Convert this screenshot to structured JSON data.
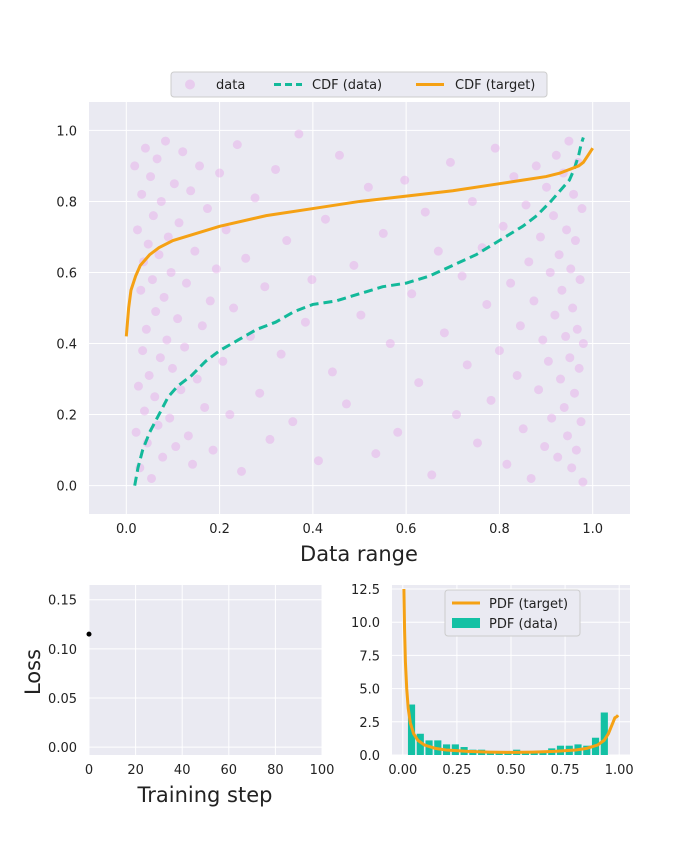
{
  "chart_data": [
    {
      "type": "scatter",
      "xlabel": "Data range",
      "ylabel": "",
      "xlim": [
        -0.08,
        1.08
      ],
      "ylim": [
        -0.08,
        1.08
      ],
      "xticks": [
        "0.0",
        "0.2",
        "0.4",
        "0.6",
        "0.8",
        "1.0"
      ],
      "yticks": [
        "0.0",
        "0.2",
        "0.4",
        "0.6",
        "0.8",
        "1.0"
      ],
      "grid": true,
      "legend": {
        "placement": "top-center",
        "entries": [
          {
            "label": "data",
            "color": "#e6a8e8",
            "style": "marker"
          },
          {
            "label": "CDF (data)",
            "color": "#13b99a",
            "style": "dashed"
          },
          {
            "label": "CDF (target)",
            "color": "#f5a114",
            "style": "solid"
          }
        ]
      },
      "scatter_series": {
        "name": "data",
        "color": "#e6a8e8",
        "x": [
          0.018,
          0.021,
          0.024,
          0.026,
          0.029,
          0.031,
          0.033,
          0.035,
          0.037,
          0.039,
          0.041,
          0.043,
          0.045,
          0.047,
          0.049,
          0.052,
          0.054,
          0.056,
          0.058,
          0.061,
          0.063,
          0.066,
          0.068,
          0.07,
          0.073,
          0.075,
          0.078,
          0.081,
          0.084,
          0.087,
          0.09,
          0.093,
          0.096,
          0.099,
          0.103,
          0.106,
          0.11,
          0.113,
          0.117,
          0.121,
          0.125,
          0.129,
          0.133,
          0.138,
          0.142,
          0.147,
          0.152,
          0.157,
          0.163,
          0.168,
          0.174,
          0.18,
          0.186,
          0.193,
          0.2,
          0.207,
          0.214,
          0.222,
          0.23,
          0.238,
          0.247,
          0.256,
          0.266,
          0.276,
          0.286,
          0.297,
          0.308,
          0.32,
          0.332,
          0.344,
          0.357,
          0.37,
          0.384,
          0.398,
          0.412,
          0.427,
          0.442,
          0.457,
          0.472,
          0.488,
          0.503,
          0.519,
          0.535,
          0.551,
          0.566,
          0.582,
          0.597,
          0.612,
          0.627,
          0.641,
          0.655,
          0.669,
          0.682,
          0.695,
          0.708,
          0.72,
          0.731,
          0.742,
          0.753,
          0.763,
          0.773,
          0.782,
          0.791,
          0.8,
          0.808,
          0.816,
          0.824,
          0.831,
          0.838,
          0.845,
          0.851,
          0.857,
          0.863,
          0.868,
          0.874,
          0.879,
          0.884,
          0.888,
          0.893,
          0.897,
          0.901,
          0.905,
          0.909,
          0.912,
          0.916,
          0.919,
          0.922,
          0.925,
          0.928,
          0.931,
          0.934,
          0.937,
          0.939,
          0.942,
          0.944,
          0.946,
          0.949,
          0.951,
          0.953,
          0.955,
          0.957,
          0.959,
          0.961,
          0.963,
          0.965,
          0.967,
          0.969,
          0.971,
          0.973,
          0.975,
          0.977,
          0.979,
          0.98
        ],
        "y": [
          0.9,
          0.15,
          0.72,
          0.28,
          0.05,
          0.55,
          0.82,
          0.38,
          0.63,
          0.21,
          0.95,
          0.44,
          0.12,
          0.68,
          0.31,
          0.87,
          0.02,
          0.58,
          0.76,
          0.25,
          0.49,
          0.92,
          0.17,
          0.65,
          0.36,
          0.8,
          0.08,
          0.53,
          0.97,
          0.41,
          0.7,
          0.19,
          0.6,
          0.33,
          0.85,
          0.11,
          0.47,
          0.74,
          0.27,
          0.94,
          0.39,
          0.57,
          0.14,
          0.83,
          0.06,
          0.66,
          0.3,
          0.9,
          0.45,
          0.22,
          0.78,
          0.52,
          0.1,
          0.61,
          0.88,
          0.35,
          0.72,
          0.2,
          0.5,
          0.96,
          0.04,
          0.64,
          0.42,
          0.81,
          0.26,
          0.56,
          0.13,
          0.89,
          0.37,
          0.69,
          0.18,
          0.99,
          0.46,
          0.58,
          0.07,
          0.75,
          0.32,
          0.93,
          0.23,
          0.62,
          0.48,
          0.84,
          0.09,
          0.71,
          0.4,
          0.15,
          0.86,
          0.54,
          0.29,
          0.77,
          0.03,
          0.66,
          0.43,
          0.91,
          0.2,
          0.59,
          0.34,
          0.8,
          0.12,
          0.67,
          0.51,
          0.24,
          0.95,
          0.38,
          0.73,
          0.06,
          0.57,
          0.87,
          0.31,
          0.45,
          0.16,
          0.79,
          0.63,
          0.02,
          0.52,
          0.9,
          0.27,
          0.7,
          0.41,
          0.11,
          0.84,
          0.35,
          0.6,
          0.19,
          0.76,
          0.48,
          0.93,
          0.08,
          0.65,
          0.3,
          0.55,
          0.88,
          0.22,
          0.42,
          0.72,
          0.14,
          0.97,
          0.36,
          0.61,
          0.05,
          0.5,
          0.82,
          0.26,
          0.69,
          0.1,
          0.44,
          0.91,
          0.33,
          0.58,
          0.18,
          0.78,
          0.01,
          0.4
        ],
        "points_visible": true
      },
      "cdf_data": {
        "name": "CDF (data)",
        "color": "#13b99a",
        "x": [
          0.018,
          0.025,
          0.035,
          0.05,
          0.07,
          0.09,
          0.11,
          0.14,
          0.17,
          0.2,
          0.24,
          0.28,
          0.32,
          0.36,
          0.4,
          0.45,
          0.5,
          0.55,
          0.6,
          0.65,
          0.7,
          0.75,
          0.8,
          0.85,
          0.88,
          0.91,
          0.93,
          0.95,
          0.96,
          0.97,
          0.975,
          0.98
        ],
        "y": [
          0.0,
          0.05,
          0.1,
          0.15,
          0.2,
          0.25,
          0.28,
          0.31,
          0.35,
          0.38,
          0.41,
          0.44,
          0.46,
          0.49,
          0.51,
          0.52,
          0.54,
          0.56,
          0.57,
          0.59,
          0.62,
          0.65,
          0.69,
          0.73,
          0.76,
          0.8,
          0.83,
          0.86,
          0.89,
          0.93,
          0.96,
          0.98
        ]
      },
      "cdf_target": {
        "name": "CDF (target)",
        "color": "#f5a114",
        "x": [
          0.0,
          0.005,
          0.01,
          0.02,
          0.03,
          0.05,
          0.07,
          0.1,
          0.15,
          0.2,
          0.3,
          0.4,
          0.5,
          0.6,
          0.7,
          0.8,
          0.85,
          0.9,
          0.93,
          0.95,
          0.97,
          0.98,
          0.99,
          1.0
        ],
        "y": [
          0.42,
          0.5,
          0.55,
          0.59,
          0.62,
          0.65,
          0.67,
          0.69,
          0.71,
          0.73,
          0.76,
          0.78,
          0.8,
          0.815,
          0.83,
          0.85,
          0.86,
          0.87,
          0.88,
          0.89,
          0.9,
          0.91,
          0.93,
          0.95
        ]
      }
    },
    {
      "type": "line",
      "xlabel": "Training step",
      "ylabel": "Loss",
      "xlim": [
        0,
        100
      ],
      "ylim": [
        -0.008,
        0.165
      ],
      "xticks": [
        "0",
        "20",
        "40",
        "60",
        "80",
        "100"
      ],
      "yticks": [
        "0.00",
        "0.05",
        "0.10",
        "0.15"
      ],
      "grid": true,
      "series": [
        {
          "color": "#000000",
          "x": [
            0
          ],
          "y": [
            0.115
          ]
        }
      ]
    },
    {
      "type": "bar",
      "xlabel": "",
      "ylabel": "",
      "xlim": [
        -0.05,
        1.05
      ],
      "ylim": [
        0,
        12.8
      ],
      "xticks": [
        "0.00",
        "0.25",
        "0.50",
        "0.75",
        "1.00"
      ],
      "yticks": [
        "0.0",
        "2.5",
        "5.0",
        "7.5",
        "10.0",
        "12.5"
      ],
      "grid": true,
      "legend": {
        "placement": "top-center",
        "entries": [
          {
            "label": "PDF (target)",
            "color": "#f5a114",
            "style": "solid"
          },
          {
            "label": "PDF (data)",
            "color": "#13c1a4",
            "style": "patch"
          }
        ]
      },
      "bins": {
        "name": "PDF (data)",
        "color": "#13c1a4",
        "edges": [
          0.02,
          0.0605,
          0.101,
          0.1415,
          0.182,
          0.2225,
          0.263,
          0.3035,
          0.344,
          0.3845,
          0.425,
          0.4655,
          0.506,
          0.5465,
          0.587,
          0.6275,
          0.668,
          0.7085,
          0.749,
          0.7895,
          0.83,
          0.8705,
          0.911,
          0.9515,
          0.992
        ],
        "values": [
          3.8,
          1.6,
          1.1,
          1.1,
          0.8,
          0.8,
          0.6,
          0.4,
          0.4,
          0.3,
          0.3,
          0.3,
          0.4,
          0.3,
          0.3,
          0.3,
          0.5,
          0.7,
          0.7,
          0.8,
          0.7,
          1.3,
          3.2,
          0.0
        ]
      },
      "pdf_target": {
        "name": "PDF (target)",
        "color": "#f5a114",
        "x": [
          0.005,
          0.008,
          0.012,
          0.018,
          0.025,
          0.035,
          0.05,
          0.07,
          0.1,
          0.15,
          0.2,
          0.3,
          0.4,
          0.5,
          0.6,
          0.7,
          0.8,
          0.85,
          0.9,
          0.93,
          0.95,
          0.97,
          0.98,
          0.99,
          0.995
        ],
        "y": [
          12.5,
          9.5,
          7.0,
          5.0,
          3.5,
          2.4,
          1.6,
          1.1,
          0.75,
          0.5,
          0.38,
          0.27,
          0.22,
          0.2,
          0.22,
          0.27,
          0.38,
          0.5,
          0.75,
          1.1,
          1.6,
          2.4,
          2.8,
          2.9,
          3.0
        ]
      }
    }
  ]
}
